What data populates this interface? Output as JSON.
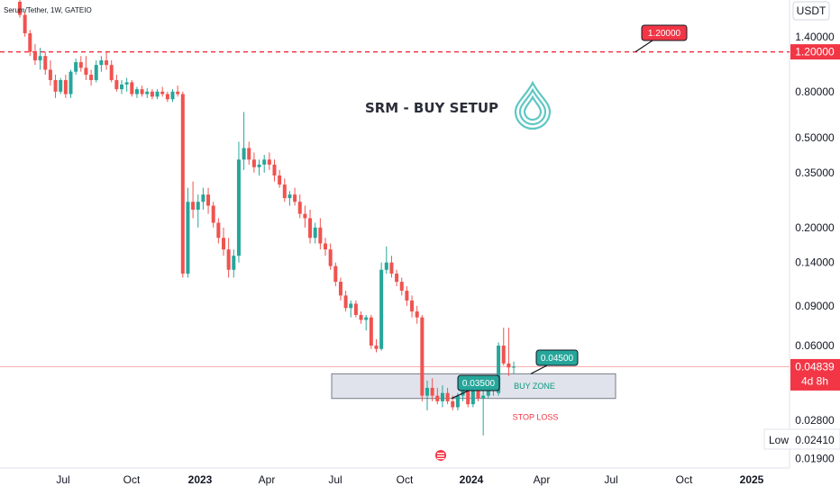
{
  "header": {
    "symbol": "Serum/Tether, 1W, GATEIO",
    "currency": "USDT",
    "title": "SRM - BUY SETUP"
  },
  "price_tag": {
    "value": "0.04839",
    "countdown": "4d 8h"
  },
  "low_label": {
    "label": "Low",
    "value": "0.02410"
  },
  "annotations": {
    "target": "1.20000",
    "target_axis": "1.20000",
    "upper_entry": "0.04500",
    "lower_entry": "0.03500",
    "zone": "BUY ZONE",
    "stop": "STOP LOSS"
  },
  "colors": {
    "up": "#26a69a",
    "down": "#ef5350",
    "target_line": "#f23645",
    "zone_fill": "#e0e3eb",
    "zone_label": "#089981",
    "stop_label": "#f23645",
    "logo": "#5fc7c3"
  },
  "chart_data": {
    "type": "candlestick",
    "scale": "log",
    "y_ticks": [
      "1.40000",
      "0.80000",
      "0.50000",
      "0.35000",
      "0.20000",
      "0.14000",
      "0.09000",
      "0.06000",
      "0.02800",
      "0.01900"
    ],
    "x_ticks": [
      "Jul",
      "Oct",
      "2023",
      "Apr",
      "Jul",
      "Oct",
      "2024",
      "Apr",
      "Jul",
      "Oct",
      "2025"
    ],
    "target_price": 1.2,
    "buy_zone": [
      0.035,
      0.045
    ],
    "last_price": 0.04839,
    "candles": [
      [
        2.0,
        2.3,
        1.7,
        1.75
      ],
      [
        1.75,
        1.8,
        1.4,
        1.45
      ],
      [
        1.45,
        1.5,
        1.15,
        1.2
      ],
      [
        1.2,
        1.3,
        1.05,
        1.1
      ],
      [
        1.1,
        1.25,
        1.0,
        1.15
      ],
      [
        1.15,
        1.2,
        0.95,
        1.0
      ],
      [
        1.0,
        1.1,
        0.85,
        0.9
      ],
      [
        0.9,
        0.95,
        0.75,
        0.8
      ],
      [
        0.8,
        0.92,
        0.78,
        0.9
      ],
      [
        0.9,
        0.95,
        0.75,
        0.78
      ],
      [
        0.78,
        1.0,
        0.75,
        0.98
      ],
      [
        0.98,
        1.12,
        0.95,
        1.08
      ],
      [
        1.08,
        1.15,
        0.98,
        1.02
      ],
      [
        1.02,
        1.15,
        0.9,
        0.95
      ],
      [
        0.95,
        1.0,
        0.85,
        0.9
      ],
      [
        0.9,
        1.1,
        0.88,
        1.05
      ],
      [
        1.05,
        1.15,
        0.98,
        1.1
      ],
      [
        1.1,
        1.2,
        1.0,
        1.05
      ],
      [
        1.05,
        1.1,
        0.88,
        0.9
      ],
      [
        0.9,
        0.95,
        0.8,
        0.82
      ],
      [
        0.82,
        0.9,
        0.78,
        0.86
      ],
      [
        0.86,
        0.92,
        0.8,
        0.88
      ],
      [
        0.88,
        0.9,
        0.76,
        0.78
      ],
      [
        0.78,
        0.84,
        0.75,
        0.82
      ],
      [
        0.82,
        0.85,
        0.76,
        0.78
      ],
      [
        0.78,
        0.83,
        0.75,
        0.8
      ],
      [
        0.8,
        0.82,
        0.74,
        0.76
      ],
      [
        0.76,
        0.82,
        0.74,
        0.8
      ],
      [
        0.8,
        0.84,
        0.76,
        0.78
      ],
      [
        0.78,
        0.8,
        0.72,
        0.74
      ],
      [
        0.74,
        0.82,
        0.72,
        0.8
      ],
      [
        0.8,
        0.85,
        0.76,
        0.78
      ],
      [
        0.78,
        0.8,
        0.12,
        0.125
      ],
      [
        0.125,
        0.3,
        0.12,
        0.26
      ],
      [
        0.26,
        0.32,
        0.22,
        0.24
      ],
      [
        0.24,
        0.28,
        0.2,
        0.26
      ],
      [
        0.26,
        0.3,
        0.24,
        0.28
      ],
      [
        0.28,
        0.3,
        0.23,
        0.25
      ],
      [
        0.25,
        0.26,
        0.2,
        0.21
      ],
      [
        0.21,
        0.22,
        0.17,
        0.18
      ],
      [
        0.18,
        0.2,
        0.15,
        0.16
      ],
      [
        0.16,
        0.18,
        0.12,
        0.13
      ],
      [
        0.13,
        0.16,
        0.12,
        0.15
      ],
      [
        0.15,
        0.48,
        0.14,
        0.4
      ],
      [
        0.4,
        0.65,
        0.36,
        0.45
      ],
      [
        0.45,
        0.48,
        0.38,
        0.4
      ],
      [
        0.4,
        0.43,
        0.35,
        0.37
      ],
      [
        0.37,
        0.4,
        0.34,
        0.38
      ],
      [
        0.38,
        0.42,
        0.35,
        0.4
      ],
      [
        0.4,
        0.43,
        0.36,
        0.38
      ],
      [
        0.38,
        0.4,
        0.32,
        0.34
      ],
      [
        0.34,
        0.36,
        0.3,
        0.31
      ],
      [
        0.31,
        0.33,
        0.26,
        0.27
      ],
      [
        0.27,
        0.29,
        0.25,
        0.28
      ],
      [
        0.28,
        0.3,
        0.25,
        0.26
      ],
      [
        0.26,
        0.28,
        0.22,
        0.23
      ],
      [
        0.23,
        0.25,
        0.2,
        0.22
      ],
      [
        0.22,
        0.24,
        0.17,
        0.18
      ],
      [
        0.18,
        0.21,
        0.17,
        0.2
      ],
      [
        0.2,
        0.22,
        0.16,
        0.17
      ],
      [
        0.17,
        0.18,
        0.15,
        0.16
      ],
      [
        0.16,
        0.17,
        0.13,
        0.135
      ],
      [
        0.135,
        0.14,
        0.11,
        0.115
      ],
      [
        0.115,
        0.12,
        0.095,
        0.1
      ],
      [
        0.1,
        0.105,
        0.085,
        0.088
      ],
      [
        0.088,
        0.095,
        0.08,
        0.092
      ],
      [
        0.092,
        0.095,
        0.08,
        0.082
      ],
      [
        0.082,
        0.085,
        0.075,
        0.078
      ],
      [
        0.078,
        0.082,
        0.07,
        0.08
      ],
      [
        0.08,
        0.082,
        0.058,
        0.06
      ],
      [
        0.06,
        0.064,
        0.056,
        0.058
      ],
      [
        0.058,
        0.14,
        0.057,
        0.13
      ],
      [
        0.13,
        0.165,
        0.125,
        0.14
      ],
      [
        0.14,
        0.15,
        0.12,
        0.125
      ],
      [
        0.125,
        0.13,
        0.11,
        0.115
      ],
      [
        0.115,
        0.12,
        0.1,
        0.105
      ],
      [
        0.105,
        0.11,
        0.09,
        0.095
      ],
      [
        0.095,
        0.1,
        0.08,
        0.085
      ],
      [
        0.085,
        0.09,
        0.075,
        0.08
      ],
      [
        0.08,
        0.082,
        0.034,
        0.036
      ],
      [
        0.036,
        0.042,
        0.031,
        0.039
      ],
      [
        0.039,
        0.043,
        0.034,
        0.036
      ],
      [
        0.036,
        0.039,
        0.033,
        0.034
      ],
      [
        0.034,
        0.04,
        0.032,
        0.037
      ],
      [
        0.037,
        0.039,
        0.033,
        0.034
      ],
      [
        0.034,
        0.036,
        0.031,
        0.032
      ],
      [
        0.032,
        0.037,
        0.031,
        0.036
      ],
      [
        0.036,
        0.04,
        0.034,
        0.038
      ],
      [
        0.038,
        0.039,
        0.032,
        0.033
      ],
      [
        0.033,
        0.04,
        0.032,
        0.039
      ],
      [
        0.039,
        0.043,
        0.034,
        0.035
      ],
      [
        0.035,
        0.038,
        0.024,
        0.036
      ],
      [
        0.036,
        0.039,
        0.035,
        0.038
      ],
      [
        0.038,
        0.041,
        0.036,
        0.039
      ],
      [
        0.037,
        0.062,
        0.036,
        0.06
      ],
      [
        0.06,
        0.072,
        0.049,
        0.05
      ],
      [
        0.05,
        0.072,
        0.044,
        0.048
      ],
      [
        0.048,
        0.051,
        0.045,
        0.04839
      ]
    ]
  }
}
